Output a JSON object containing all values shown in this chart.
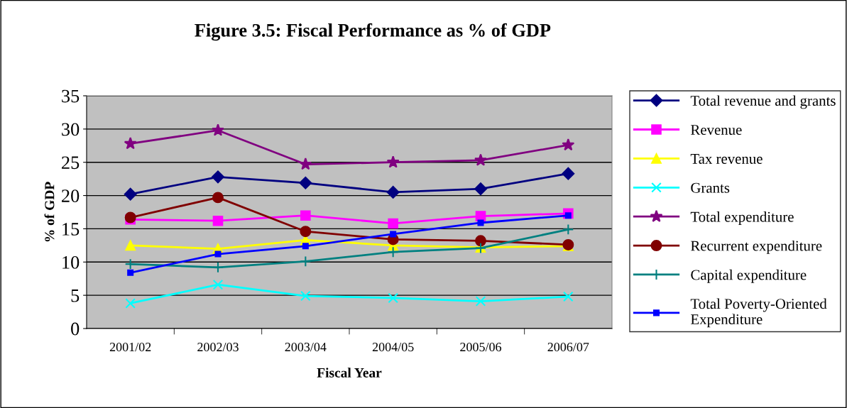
{
  "chart_data": {
    "type": "line",
    "title": "Figure 3.5: Fiscal Performance as % of GDP",
    "xlabel": "Fiscal Year",
    "ylabel": "% of GDP",
    "categories": [
      "2001/02",
      "2002/03",
      "2003/04",
      "2004/05",
      "2005/06",
      "2006/07"
    ],
    "ylim": [
      0,
      35
    ],
    "yticks": [
      0,
      5,
      10,
      15,
      20,
      25,
      30,
      35
    ],
    "grid": "y",
    "legend": "right",
    "series": [
      {
        "name": "Total revenue and grants",
        "color": "#000080",
        "marker": "diamond",
        "values": [
          20.2,
          22.8,
          21.9,
          20.5,
          21.0,
          23.3
        ]
      },
      {
        "name": "Revenue",
        "color": "#ff00ff",
        "marker": "square",
        "values": [
          16.4,
          16.2,
          17.0,
          15.8,
          16.9,
          17.3
        ]
      },
      {
        "name": "Tax revenue",
        "color": "#ffff00",
        "marker": "triangle",
        "values": [
          12.5,
          12.0,
          13.3,
          12.5,
          12.2,
          12.4
        ]
      },
      {
        "name": "Grants",
        "color": "#00ffff",
        "marker": "cross",
        "values": [
          3.8,
          6.6,
          4.9,
          4.6,
          4.1,
          4.8
        ]
      },
      {
        "name": "Total expenditure",
        "color": "#800080",
        "marker": "star",
        "values": [
          27.8,
          29.8,
          24.7,
          25.0,
          25.3,
          27.6
        ]
      },
      {
        "name": "Recurrent expenditure",
        "color": "#800000",
        "marker": "circle",
        "values": [
          16.7,
          19.7,
          14.6,
          13.4,
          13.2,
          12.6
        ]
      },
      {
        "name": "Capital expenditure",
        "color": "#008080",
        "marker": "plus",
        "values": [
          9.7,
          9.2,
          10.1,
          11.5,
          12.1,
          14.9
        ]
      },
      {
        "name": "Total Poverty-Oriented\nExpenditure",
        "color": "#0000ff",
        "marker": "square",
        "values": [
          8.4,
          11.2,
          12.4,
          14.2,
          15.9,
          17.0
        ]
      }
    ]
  }
}
